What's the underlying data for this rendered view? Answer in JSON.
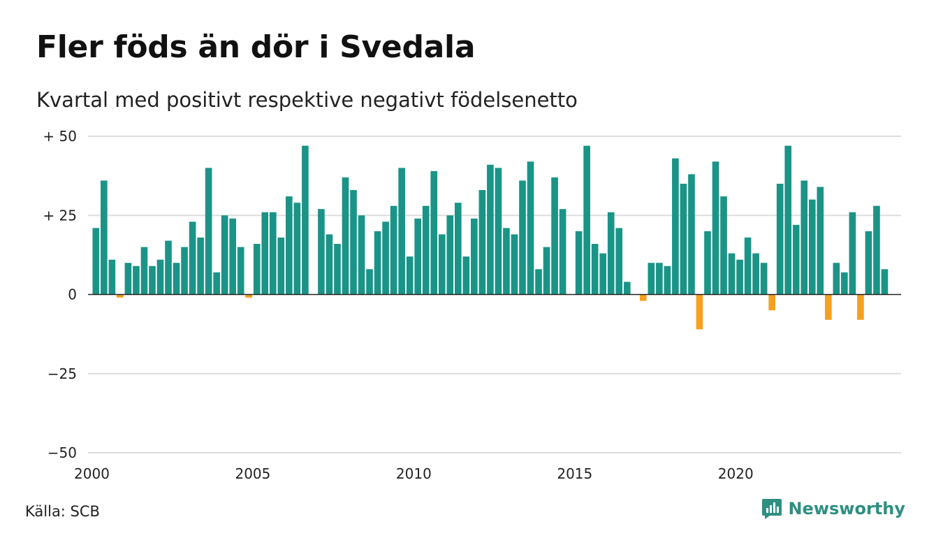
{
  "header": {
    "title": "Fler föds än dör i Svedala",
    "subtitle": "Kvartal med positivt respektive negativt födelsenetto"
  },
  "footer": {
    "source": "Källa: SCB",
    "brand": "Newsworthy",
    "brand_icon": "newsworthy-logo-icon"
  },
  "colors": {
    "positive": "#1a9486",
    "negative": "#f5a01f",
    "grid": "#dddddd",
    "baseline": "#222222",
    "brand": "#2f8f80"
  },
  "chart_data": {
    "type": "bar",
    "title": "Fler föds än dör i Svedala",
    "subtitle": "Kvartal med positivt respektive negativt födelsenetto",
    "xlabel": "",
    "ylabel": "",
    "ylim": [
      -50,
      50
    ],
    "xlim": [
      2000,
      2025
    ],
    "y_ticks": [
      {
        "value": 50,
        "label": "+ 50"
      },
      {
        "value": 25,
        "label": "+ 25"
      },
      {
        "value": 0,
        "label": "0"
      },
      {
        "value": -25,
        "label": "−25"
      },
      {
        "value": -50,
        "label": "−50"
      }
    ],
    "x_ticks": [
      {
        "value": 2000,
        "label": "2000"
      },
      {
        "value": 2005,
        "label": "2005"
      },
      {
        "value": 2010,
        "label": "2010"
      },
      {
        "value": 2015,
        "label": "2015"
      },
      {
        "value": 2020,
        "label": "2020"
      }
    ],
    "grid": true,
    "legend": "none",
    "start_year": 2000,
    "periods_per_year": 4,
    "values": [
      21,
      36,
      11,
      -1,
      10,
      9,
      15,
      9,
      11,
      17,
      10,
      15,
      23,
      18,
      40,
      7,
      25,
      24,
      15,
      -1,
      16,
      26,
      26,
      18,
      31,
      29,
      47,
      0,
      27,
      19,
      16,
      37,
      33,
      25,
      8,
      20,
      23,
      28,
      40,
      12,
      24,
      28,
      39,
      19,
      25,
      29,
      12,
      24,
      33,
      41,
      40,
      21,
      19,
      36,
      42,
      8,
      15,
      37,
      27,
      0,
      20,
      47,
      16,
      13,
      26,
      21,
      4,
      0,
      -2,
      10,
      10,
      9,
      43,
      35,
      38,
      -11,
      20,
      42,
      31,
      13,
      11,
      18,
      13,
      10,
      -5,
      35,
      47,
      22,
      36,
      30,
      34,
      -8,
      10,
      7,
      26,
      -8,
      20,
      28,
      8
    ]
  }
}
